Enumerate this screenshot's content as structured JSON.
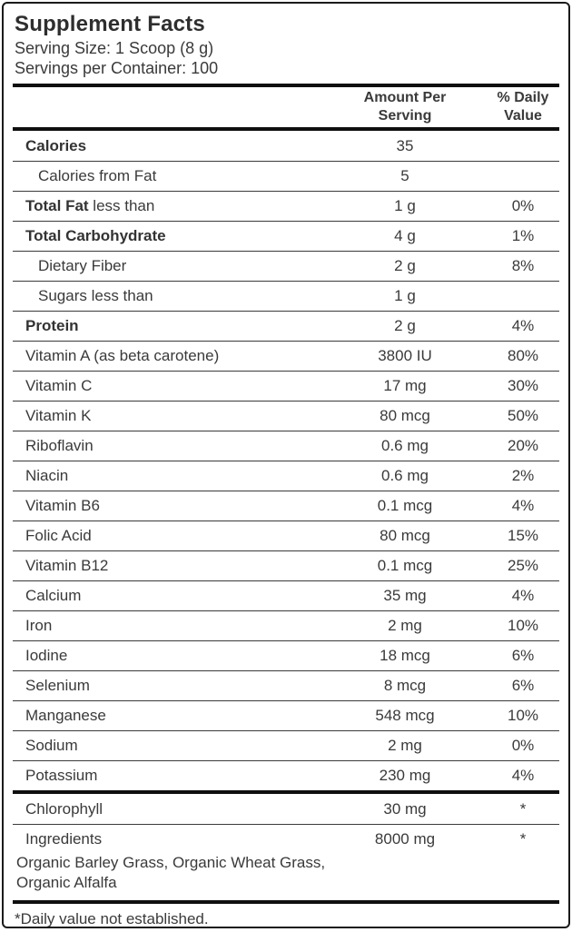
{
  "header": {
    "title": "Supplement Facts",
    "serving_size": "Serving Size: 1 Scoop (8 g)",
    "servings_per_container": "Servings per Container: 100"
  },
  "table": {
    "columns": {
      "amount": "Amount Per Serving",
      "daily_value": "% Daily Value"
    },
    "main_rows": [
      {
        "label_bold": "Calories",
        "label_text": "",
        "amount": "35",
        "dv": "",
        "indent": false
      },
      {
        "label_bold": "",
        "label_text": "Calories from Fat",
        "amount": "5",
        "dv": "",
        "indent": true
      },
      {
        "label_bold": "Total Fat",
        "label_text": " less than",
        "amount": "1 g",
        "dv": "0%",
        "indent": false
      },
      {
        "label_bold": "Total Carbohydrate",
        "label_text": "",
        "amount": "4 g",
        "dv": "1%",
        "indent": false
      },
      {
        "label_bold": "",
        "label_text": "Dietary Fiber",
        "amount": "2 g",
        "dv": "8%",
        "indent": true
      },
      {
        "label_bold": "",
        "label_text": "Sugars less than",
        "amount": "1 g",
        "dv": "",
        "indent": true
      },
      {
        "label_bold": "Protein",
        "label_text": "",
        "amount": "2 g",
        "dv": "4%",
        "indent": false
      },
      {
        "label_bold": "",
        "label_text": "Vitamin A (as beta carotene)",
        "amount": "3800 IU",
        "dv": "80%",
        "indent": false
      },
      {
        "label_bold": "",
        "label_text": "Vitamin C",
        "amount": "17 mg",
        "dv": "30%",
        "indent": false
      },
      {
        "label_bold": "",
        "label_text": "Vitamin K",
        "amount": "80 mcg",
        "dv": "50%",
        "indent": false
      },
      {
        "label_bold": "",
        "label_text": "Riboflavin",
        "amount": "0.6 mg",
        "dv": "20%",
        "indent": false
      },
      {
        "label_bold": "",
        "label_text": "Niacin",
        "amount": "0.6 mg",
        "dv": "2%",
        "indent": false
      },
      {
        "label_bold": "",
        "label_text": "Vitamin B6",
        "amount": "0.1 mcg",
        "dv": "4%",
        "indent": false
      },
      {
        "label_bold": "",
        "label_text": "Folic Acid",
        "amount": "80 mcg",
        "dv": "15%",
        "indent": false
      },
      {
        "label_bold": "",
        "label_text": "Vitamin B12",
        "amount": "0.1 mcg",
        "dv": "25%",
        "indent": false
      },
      {
        "label_bold": "",
        "label_text": "Calcium",
        "amount": "35 mg",
        "dv": "4%",
        "indent": false
      },
      {
        "label_bold": "",
        "label_text": "Iron",
        "amount": "2 mg",
        "dv": "10%",
        "indent": false
      },
      {
        "label_bold": "",
        "label_text": "Iodine",
        "amount": "18 mcg",
        "dv": "6%",
        "indent": false
      },
      {
        "label_bold": "",
        "label_text": "Selenium",
        "amount": "8 mcg",
        "dv": "6%",
        "indent": false
      },
      {
        "label_bold": "",
        "label_text": "Manganese",
        "amount": "548 mcg",
        "dv": "10%",
        "indent": false
      },
      {
        "label_bold": "",
        "label_text": "Sodium",
        "amount": "2 mg",
        "dv": "0%",
        "indent": false
      },
      {
        "label_bold": "",
        "label_text": "Potassium",
        "amount": "230 mg",
        "dv": "4%",
        "indent": false
      }
    ],
    "supplement_rows": [
      {
        "label_bold": "",
        "label_text": "Chlorophyll",
        "amount": "30 mg",
        "dv": "*",
        "indent": false
      }
    ],
    "ingredients_row": {
      "label_text": "Ingredients",
      "amount": "8000 mg",
      "dv": "*",
      "ingredients_list": "Organic Barley Grass, Organic Wheat Grass, Organic Alfalfa"
    }
  },
  "footnote": "*Daily value not established.",
  "colors": {
    "text": "#3a3a3a",
    "section_bar": "#0f0f0f",
    "border": "#1a1a1a",
    "background": "#ffffff"
  }
}
